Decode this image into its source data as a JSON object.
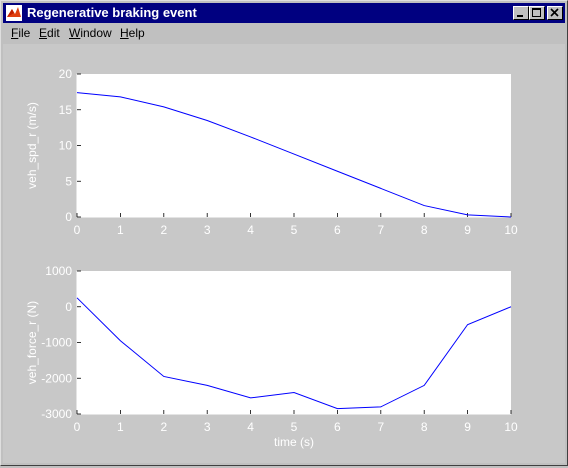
{
  "window": {
    "title": "Regenerative braking event",
    "title_color": "#000080",
    "controls": {
      "minimize": "minimize-icon",
      "maximize": "maximize-icon",
      "close": "close-icon"
    }
  },
  "menubar": {
    "items": [
      {
        "first": "F",
        "rest": "ile"
      },
      {
        "first": "E",
        "rest": "dit"
      },
      {
        "first": "W",
        "rest": "indow"
      },
      {
        "first": "H",
        "rest": "elp"
      }
    ]
  },
  "chart_data": [
    {
      "type": "line",
      "title": "",
      "xlabel": "",
      "ylabel": "veh_spd_r (m/s)",
      "xlim": [
        0,
        10
      ],
      "ylim": [
        0,
        20
      ],
      "xticks": [
        "0",
        "1",
        "2",
        "3",
        "4",
        "5",
        "6",
        "7",
        "8",
        "9",
        "10"
      ],
      "yticks": [
        "0",
        "5",
        "10",
        "15",
        "20"
      ],
      "grid": false,
      "line_color": "#0000ff",
      "series": [
        {
          "x": [
            0,
            1,
            2,
            3,
            4,
            5,
            6,
            7,
            8,
            9,
            10
          ],
          "y": [
            17.4,
            16.8,
            15.4,
            13.5,
            11.2,
            8.8,
            6.4,
            4.0,
            1.6,
            0.3,
            0.0
          ]
        }
      ]
    },
    {
      "type": "line",
      "title": "",
      "xlabel": "time (s)",
      "ylabel": "veh_force_r (N)",
      "xlim": [
        0,
        10
      ],
      "ylim": [
        -3000,
        1000
      ],
      "xticks": [
        "0",
        "1",
        "2",
        "3",
        "4",
        "5",
        "6",
        "7",
        "8",
        "9",
        "10"
      ],
      "yticks": [
        "-3000",
        "-2000",
        "-1000",
        "0",
        "1000"
      ],
      "grid": false,
      "line_color": "#0000ff",
      "series": [
        {
          "x": [
            0,
            1,
            2,
            3,
            4,
            5,
            6,
            7,
            8,
            9,
            10
          ],
          "y": [
            250,
            -950,
            -1950,
            -2200,
            -2550,
            -2400,
            -2850,
            -2800,
            -2200,
            -500,
            0
          ]
        }
      ]
    }
  ]
}
